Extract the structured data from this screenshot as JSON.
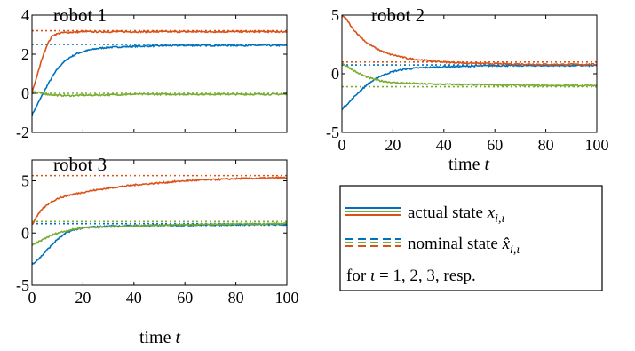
{
  "colors": {
    "series": [
      "#0072BD",
      "#D95319",
      "#77AC30"
    ],
    "axis": "#000000",
    "background": "#ffffff"
  },
  "chart_data": [
    {
      "type": "line",
      "title": "robot 1",
      "xlabel": "",
      "ylabel": "",
      "xlim": [
        0,
        100
      ],
      "ylim": [
        -2,
        4
      ],
      "yticks": [
        -2,
        0,
        2,
        4
      ],
      "ytick_labels": [
        "-2",
        "0",
        "2",
        "4"
      ],
      "xticks": [
        0,
        20,
        40,
        60,
        80,
        100
      ],
      "xtick_labels": [
        "",
        "",
        "",
        "",
        "",
        ""
      ],
      "grid": false,
      "series": [
        {
          "kind": "actual",
          "x": [
            0,
            2,
            4,
            6,
            8,
            10,
            12,
            15,
            18,
            22,
            26,
            30,
            40,
            50,
            60,
            70,
            80,
            90,
            100
          ],
          "values": [
            -1.1,
            -0.6,
            -0.1,
            0.4,
            0.85,
            1.25,
            1.55,
            1.85,
            2.05,
            2.2,
            2.3,
            2.35,
            2.4,
            2.43,
            2.45,
            2.45,
            2.45,
            2.45,
            2.45
          ]
        },
        {
          "kind": "actual",
          "x": [
            0,
            2,
            4,
            6,
            8,
            10,
            12,
            15,
            20,
            30,
            40,
            60,
            80,
            100
          ],
          "values": [
            0.05,
            0.9,
            1.8,
            2.5,
            2.95,
            3.05,
            3.1,
            3.12,
            3.15,
            3.15,
            3.15,
            3.15,
            3.15,
            3.15
          ]
        },
        {
          "kind": "actual",
          "x": [
            0,
            2,
            4,
            6,
            8,
            10,
            15,
            20,
            30,
            40,
            60,
            80,
            100
          ],
          "values": [
            0.1,
            0.05,
            0.0,
            -0.05,
            -0.08,
            -0.1,
            -0.12,
            -0.1,
            -0.08,
            -0.05,
            -0.05,
            -0.05,
            -0.05
          ]
        },
        {
          "kind": "nominal",
          "x": [
            0,
            100
          ],
          "values": [
            2.5,
            2.5
          ]
        },
        {
          "kind": "nominal",
          "x": [
            0,
            100
          ],
          "values": [
            3.2,
            3.2
          ]
        },
        {
          "kind": "nominal",
          "x": [
            0,
            100
          ],
          "values": [
            0.0,
            0.0
          ]
        }
      ]
    },
    {
      "type": "line",
      "title": "robot 2",
      "xlabel": "time t",
      "ylabel": "",
      "xlim": [
        0,
        100
      ],
      "ylim": [
        -5,
        5
      ],
      "yticks": [
        -5,
        0,
        5
      ],
      "ytick_labels": [
        "-5",
        "0",
        "5"
      ],
      "xticks": [
        0,
        20,
        40,
        60,
        80,
        100
      ],
      "xtick_labels": [
        "0",
        "20",
        "40",
        "60",
        "80",
        "100"
      ],
      "grid": false,
      "series": [
        {
          "kind": "actual",
          "x": [
            0,
            3,
            6,
            10,
            15,
            20,
            25,
            30,
            40,
            50,
            60,
            80,
            100
          ],
          "values": [
            -3.0,
            -2.4,
            -1.7,
            -0.9,
            -0.2,
            0.2,
            0.4,
            0.5,
            0.6,
            0.65,
            0.7,
            0.7,
            0.7
          ]
        },
        {
          "kind": "actual",
          "x": [
            0,
            2,
            4,
            7,
            10,
            14,
            18,
            22,
            26,
            30,
            40,
            50,
            60,
            80,
            100
          ],
          "values": [
            5.0,
            4.6,
            3.9,
            3.2,
            2.6,
            2.1,
            1.7,
            1.5,
            1.3,
            1.2,
            1.0,
            0.9,
            0.85,
            0.8,
            0.8
          ]
        },
        {
          "kind": "actual",
          "x": [
            0,
            3,
            6,
            10,
            15,
            20,
            30,
            40,
            60,
            80,
            100
          ],
          "values": [
            0.9,
            0.5,
            0.1,
            -0.3,
            -0.6,
            -0.75,
            -0.85,
            -0.9,
            -0.95,
            -1.0,
            -1.0
          ]
        },
        {
          "kind": "nominal",
          "x": [
            0,
            100
          ],
          "values": [
            0.75,
            0.75
          ]
        },
        {
          "kind": "nominal",
          "x": [
            0,
            100
          ],
          "values": [
            1.0,
            1.0
          ]
        },
        {
          "kind": "nominal",
          "x": [
            0,
            100
          ],
          "values": [
            -1.1,
            -1.1
          ]
        }
      ]
    },
    {
      "type": "line",
      "title": "robot 3",
      "xlabel": "time t",
      "ylabel": "",
      "xlim": [
        0,
        100
      ],
      "ylim": [
        -5,
        7
      ],
      "yticks": [
        -5,
        0,
        5
      ],
      "ytick_labels": [
        "-5",
        "0",
        "5"
      ],
      "xticks": [
        0,
        20,
        40,
        60,
        80,
        100
      ],
      "xtick_labels": [
        "0",
        "20",
        "40",
        "60",
        "80",
        "100"
      ],
      "grid": false,
      "series": [
        {
          "kind": "actual",
          "x": [
            0,
            3,
            6,
            10,
            14,
            18,
            22,
            26,
            30,
            40,
            60,
            80,
            100
          ],
          "values": [
            -3.0,
            -2.4,
            -1.6,
            -0.6,
            0.1,
            0.4,
            0.55,
            0.6,
            0.65,
            0.7,
            0.75,
            0.8,
            0.8
          ]
        },
        {
          "kind": "actual",
          "x": [
            0,
            2,
            4,
            7,
            10,
            14,
            18,
            22,
            26,
            30,
            40,
            50,
            60,
            70,
            80,
            90,
            100
          ],
          "values": [
            0.8,
            1.6,
            2.3,
            2.9,
            3.3,
            3.6,
            3.8,
            4.0,
            4.15,
            4.3,
            4.6,
            4.8,
            5.0,
            5.1,
            5.2,
            5.25,
            5.3
          ]
        },
        {
          "kind": "actual",
          "x": [
            0,
            3,
            6,
            10,
            15,
            20,
            30,
            40,
            60,
            80,
            100
          ],
          "values": [
            -1.2,
            -0.8,
            -0.4,
            0.0,
            0.3,
            0.5,
            0.6,
            0.7,
            0.8,
            0.85,
            0.9
          ]
        },
        {
          "kind": "nominal",
          "x": [
            0,
            100
          ],
          "values": [
            0.9,
            0.9
          ]
        },
        {
          "kind": "nominal",
          "x": [
            0,
            100
          ],
          "values": [
            5.5,
            5.5
          ]
        },
        {
          "kind": "nominal",
          "x": [
            0,
            100
          ],
          "values": [
            1.1,
            1.1
          ]
        }
      ]
    }
  ],
  "legend": {
    "actual_label": "actual state",
    "nominal_label": "nominal state",
    "footer_prefix": "for",
    "footer_suffix": "= 1, 2, 3, resp."
  }
}
